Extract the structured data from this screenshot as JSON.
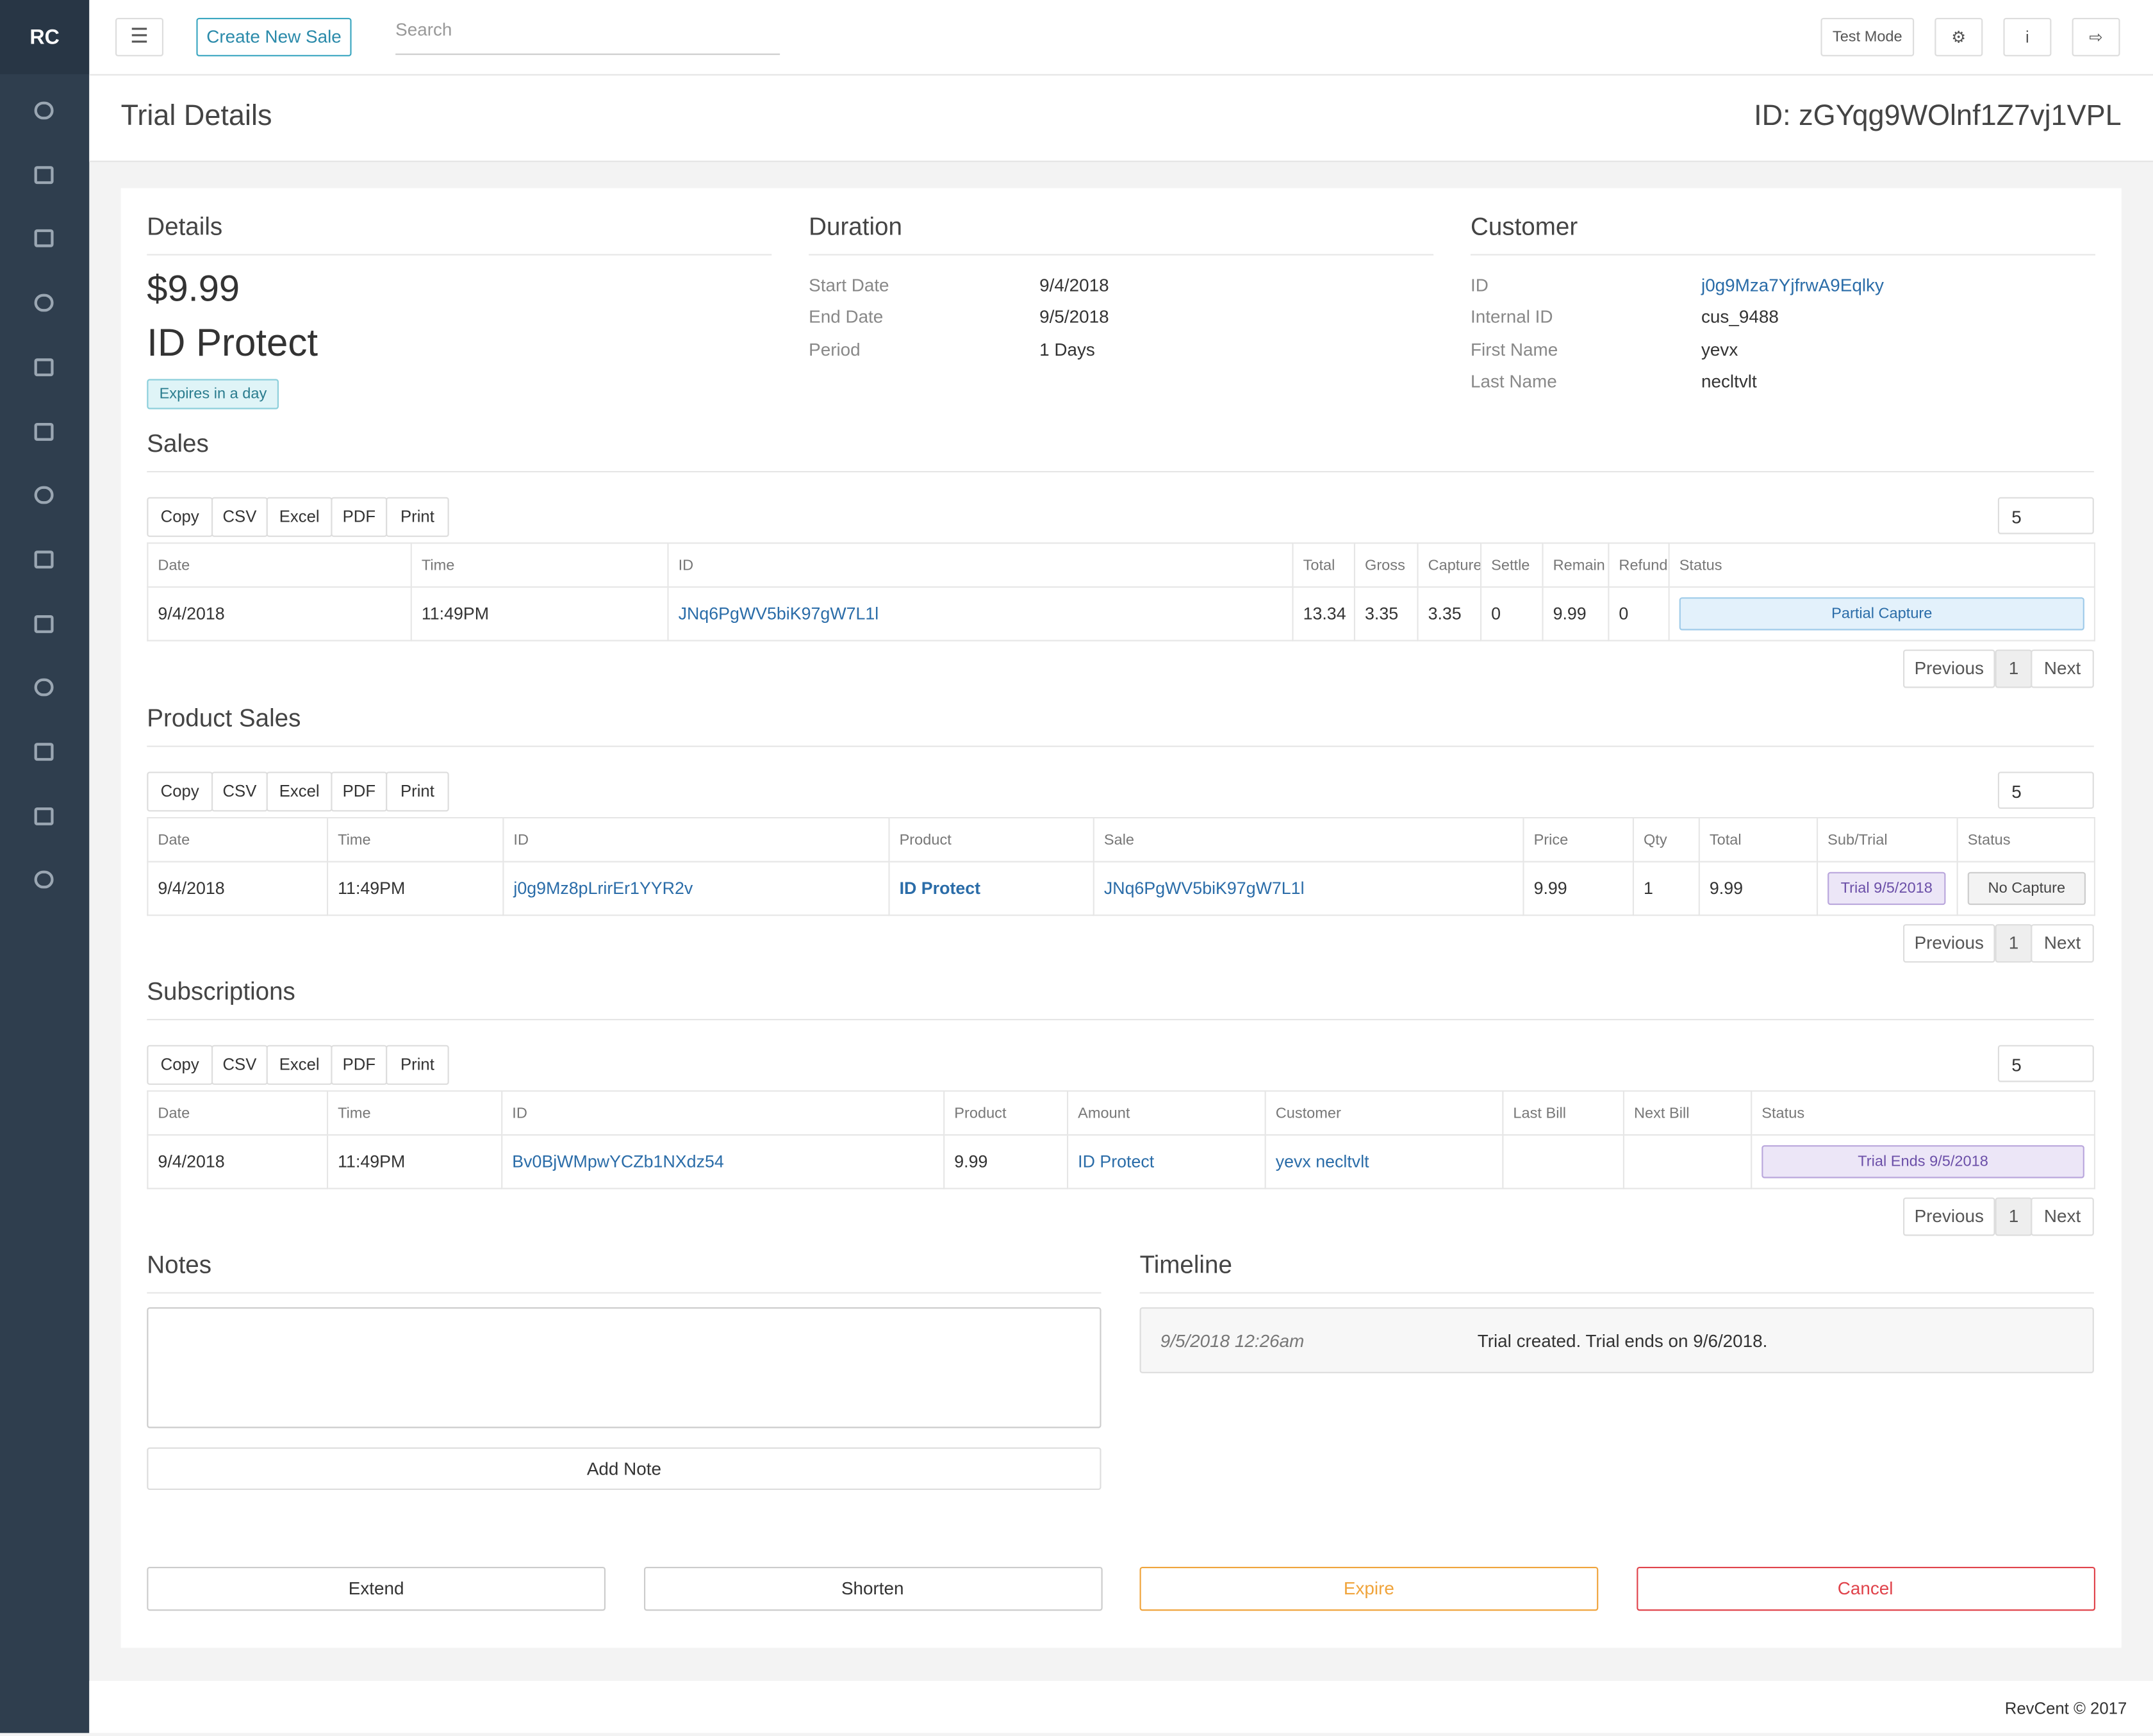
{
  "sidebar": {
    "brand": "RC"
  },
  "topbar": {
    "create_button": "Create New Sale",
    "search_placeholder": "Search",
    "test_mode": "Test Mode"
  },
  "header": {
    "title": "Trial Details",
    "id": "ID: zGYqg9WOlnf1Z7vj1VPL"
  },
  "details": {
    "heading": "Details",
    "amount": "$9.99",
    "product": "ID Protect",
    "badge": "Expires in a day"
  },
  "duration": {
    "heading": "Duration",
    "rows": [
      [
        "Start Date",
        "9/4/2018"
      ],
      [
        "End Date",
        "9/5/2018"
      ],
      [
        "Period",
        "1 Days"
      ]
    ]
  },
  "customer": {
    "heading": "Customer",
    "rows": [
      [
        "ID",
        "j0g9Mza7YjfrwA9Eqlky"
      ],
      [
        "Internal ID",
        "cus_9488"
      ],
      [
        "First Name",
        "yevx"
      ],
      [
        "Last Name",
        "necltvlt"
      ]
    ]
  },
  "table_buttons": [
    "Copy",
    "CSV",
    "Excel",
    "PDF",
    "Print"
  ],
  "page_length": "5",
  "pagination": {
    "previous": "Previous",
    "page": "1",
    "next": "Next"
  },
  "sales": {
    "heading": "Sales",
    "columns": [
      "Date",
      "Time",
      "ID",
      "Total",
      "Gross",
      "Capture",
      "Settle",
      "Remain",
      "Refund",
      "Status"
    ],
    "rows": [
      [
        "9/4/2018",
        "11:49PM",
        "JNq6PgWV5biK97gW7L1l",
        "13.34",
        "3.35",
        "3.35",
        "0",
        "9.99",
        "0",
        "Partial Capture"
      ]
    ]
  },
  "product_sales": {
    "heading": "Product Sales",
    "columns": [
      "Date",
      "Time",
      "ID",
      "Product",
      "Sale",
      "Price",
      "Qty",
      "Total",
      "Sub/Trial",
      "Status"
    ],
    "rows": [
      [
        "9/4/2018",
        "11:49PM",
        "j0g9Mz8pLrirEr1YYR2v",
        "ID Protect",
        "JNq6PgWV5biK97gW7L1l",
        "9.99",
        "1",
        "9.99",
        "Trial 9/5/2018",
        "No Capture"
      ]
    ]
  },
  "subscriptions": {
    "heading": "Subscriptions",
    "columns": [
      "Date",
      "Time",
      "ID",
      "Product",
      "Amount",
      "Customer",
      "Last Bill",
      "Next Bill",
      "Status"
    ],
    "rows": [
      [
        "9/4/2018",
        "11:49PM",
        "Bv0BjWMpwYCZb1NXdz54",
        "9.99",
        "ID Protect",
        "yevx necltvlt",
        null,
        null,
        "Trial Ends 9/5/2018"
      ]
    ]
  },
  "notes": {
    "heading": "Notes",
    "button": "Add Note"
  },
  "timeline": {
    "heading": "Timeline",
    "entries": [
      {
        "time": "9/5/2018 12:26am",
        "text": "Trial created. Trial ends on 9/6/2018."
      }
    ]
  },
  "actions": [
    "Extend",
    "Shorten",
    "Expire",
    "Cancel"
  ],
  "footer": "RevCent © 2017"
}
